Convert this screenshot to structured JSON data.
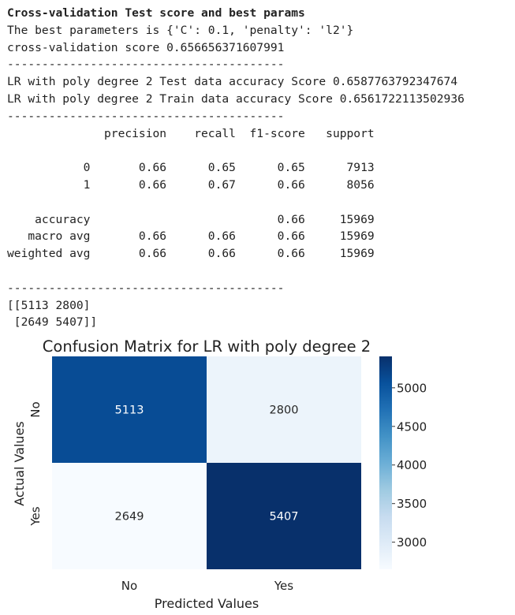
{
  "output": {
    "heading": "Cross-validation Test score and best params",
    "lines": [
      "The best parameters is {'C': 0.1, 'penalty': 'l2'}",
      "cross-validation score 0.656656371607991",
      "----------------------------------------",
      "LR with poly degree 2 Test data accuracy Score 0.6587763792347674",
      "LR with poly degree 2 Train data accuracy Score 0.6561722113502936",
      "----------------------------------------",
      "              precision    recall  f1-score   support",
      "",
      "           0       0.66      0.65      0.65      7913",
      "           1       0.66      0.67      0.66      8056",
      "",
      "    accuracy                           0.66     15969",
      "   macro avg       0.66      0.66      0.66     15969",
      "weighted avg       0.66      0.66      0.66     15969",
      "",
      "----------------------------------------",
      "[[5113 2800]",
      " [2649 5407]]"
    ]
  },
  "chart_data": {
    "type": "heatmap",
    "title": "Confusion Matrix for LR with poly degree 2",
    "xlabel": "Predicted Values",
    "ylabel": "Actual Values",
    "x_categories": [
      "No",
      "Yes"
    ],
    "y_categories": [
      "No",
      "Yes"
    ],
    "values": [
      [
        5113,
        2800
      ],
      [
        2649,
        5407
      ]
    ],
    "colormap": "Blues",
    "colors": {
      "low": "#f7fbff",
      "high": "#08306b",
      "light_text": "#ffffff",
      "dark_text": "#262626"
    },
    "colorbar": {
      "min": 2649,
      "max": 5407,
      "ticks": [
        3000,
        3500,
        4000,
        4500,
        5000
      ]
    }
  }
}
